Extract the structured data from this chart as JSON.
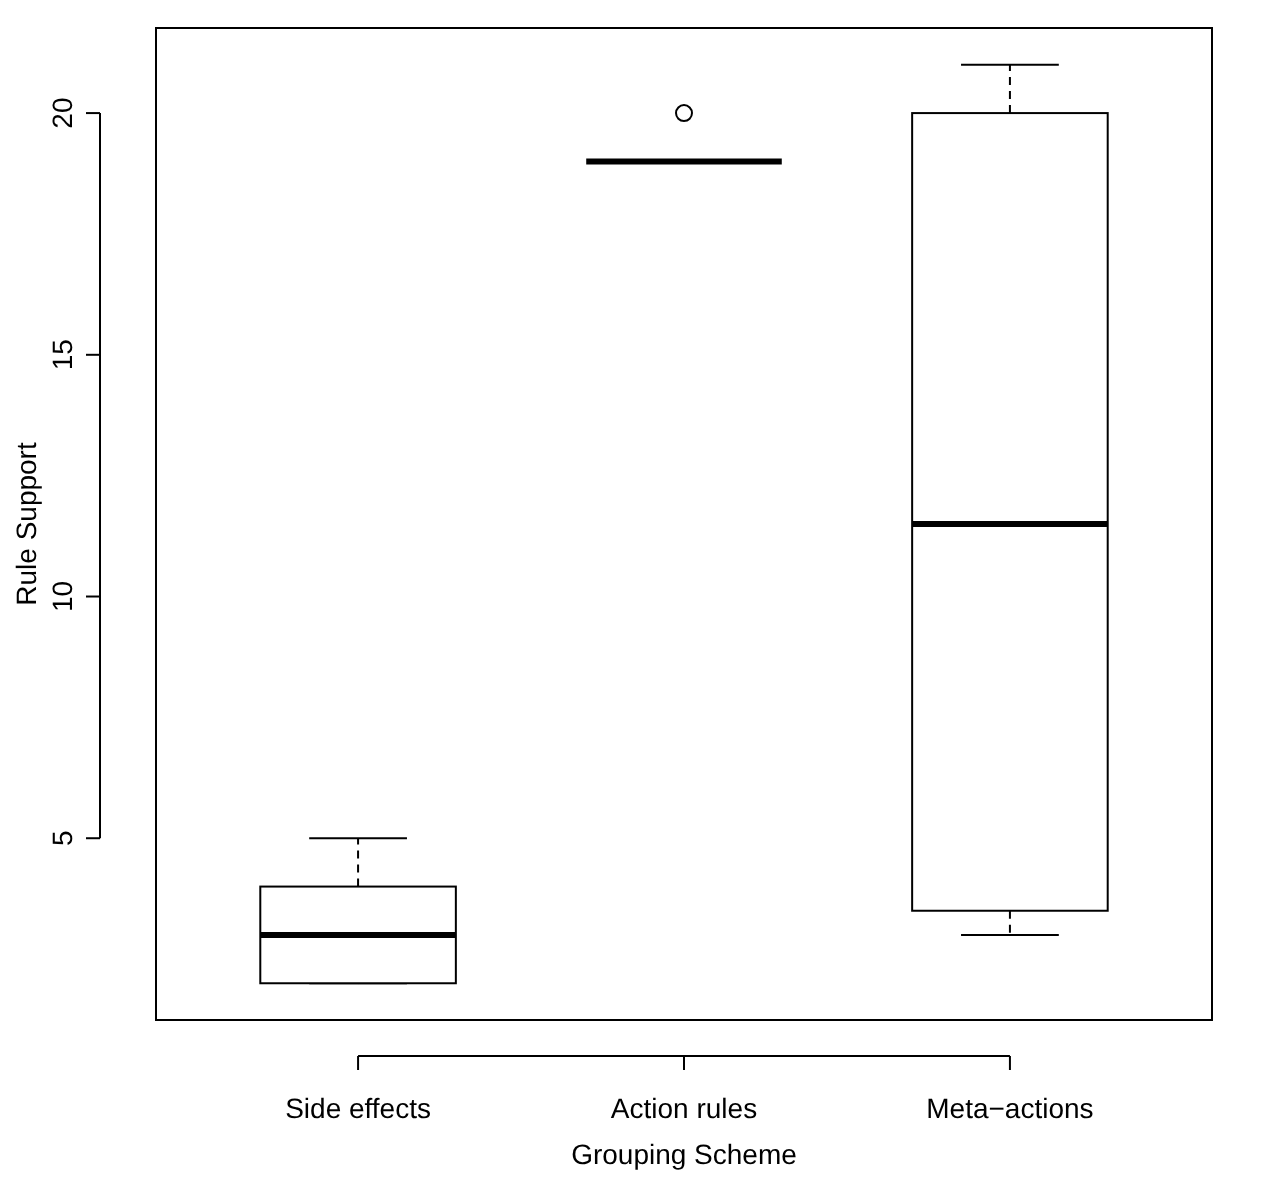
{
  "chart_data": {
    "type": "box",
    "xlabel": "Grouping Scheme",
    "ylabel": "Rule Support",
    "categories": [
      "Side effects",
      "Action rules",
      "Meta−actions"
    ],
    "boxes": [
      {
        "low": 2,
        "q1": 2,
        "median": 3,
        "q3": 4,
        "high": 5
      },
      {
        "low": 19,
        "q1": 19,
        "median": 19,
        "q3": 19,
        "high": 19,
        "outliers": [
          20
        ]
      },
      {
        "low": 3,
        "q1": 3.5,
        "median": 11.5,
        "q3": 20,
        "high": 21
      }
    ],
    "ylim": [
      1.24,
      21.76
    ],
    "yticks": [
      5,
      10,
      15,
      20
    ],
    "grid": false
  }
}
